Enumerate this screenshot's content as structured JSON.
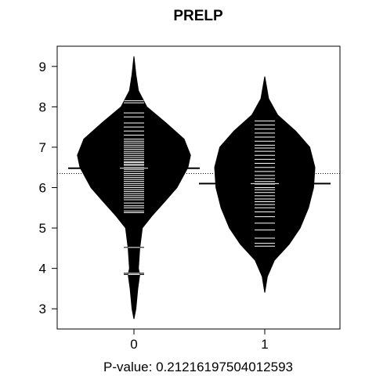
{
  "chart_data": {
    "type": "beanplot",
    "title": "PRELP",
    "xlabel": "P-value: 0.21216197504012593",
    "ylabel": "",
    "ylim": [
      2.5,
      9.5
    ],
    "y_ticks": [
      3,
      4,
      5,
      6,
      7,
      8,
      9
    ],
    "categories": [
      "0",
      "1"
    ],
    "overall_mean": 6.35,
    "series": [
      {
        "category": "0",
        "mean": 6.48,
        "density": [
          [
            2.75,
            0.0
          ],
          [
            3.0,
            0.03
          ],
          [
            3.5,
            0.06
          ],
          [
            3.85,
            0.09
          ],
          [
            4.0,
            0.07
          ],
          [
            4.5,
            0.09
          ],
          [
            5.0,
            0.13
          ],
          [
            5.3,
            0.28
          ],
          [
            5.6,
            0.45
          ],
          [
            6.0,
            0.67
          ],
          [
            6.5,
            0.84
          ],
          [
            6.8,
            0.88
          ],
          [
            7.2,
            0.78
          ],
          [
            7.6,
            0.5
          ],
          [
            8.0,
            0.2
          ],
          [
            8.4,
            0.07
          ],
          [
            8.8,
            0.03
          ],
          [
            9.25,
            0.0
          ]
        ],
        "points": [
          3.85,
          3.88,
          4.52,
          5.38,
          5.42,
          5.5,
          5.55,
          5.62,
          5.7,
          5.75,
          5.8,
          5.85,
          5.9,
          5.95,
          6.0,
          6.05,
          6.1,
          6.15,
          6.2,
          6.25,
          6.3,
          6.35,
          6.4,
          6.45,
          6.5,
          6.55,
          6.58,
          6.62,
          6.65,
          6.7,
          6.75,
          6.8,
          6.85,
          6.9,
          6.95,
          7.0,
          7.05,
          7.1,
          7.15,
          7.2,
          7.3,
          7.4,
          7.5,
          7.6,
          7.75,
          7.85,
          8.1,
          8.15
        ]
      },
      {
        "category": "1",
        "mean": 6.1,
        "density": [
          [
            3.4,
            0.0
          ],
          [
            3.8,
            0.04
          ],
          [
            4.2,
            0.15
          ],
          [
            4.6,
            0.38
          ],
          [
            5.0,
            0.55
          ],
          [
            5.5,
            0.68
          ],
          [
            6.0,
            0.76
          ],
          [
            6.5,
            0.78
          ],
          [
            7.0,
            0.7
          ],
          [
            7.4,
            0.48
          ],
          [
            7.8,
            0.2
          ],
          [
            8.2,
            0.06
          ],
          [
            8.75,
            0.0
          ]
        ],
        "points": [
          4.55,
          4.62,
          4.75,
          4.95,
          5.12,
          5.28,
          5.4,
          5.5,
          5.58,
          5.65,
          5.72,
          5.8,
          5.88,
          5.95,
          6.0,
          6.08,
          6.15,
          6.22,
          6.3,
          6.4,
          6.5,
          6.6,
          6.7,
          6.8,
          6.9,
          6.98,
          7.05,
          7.15,
          7.25,
          7.35,
          7.45,
          7.55,
          7.65
        ]
      }
    ]
  }
}
